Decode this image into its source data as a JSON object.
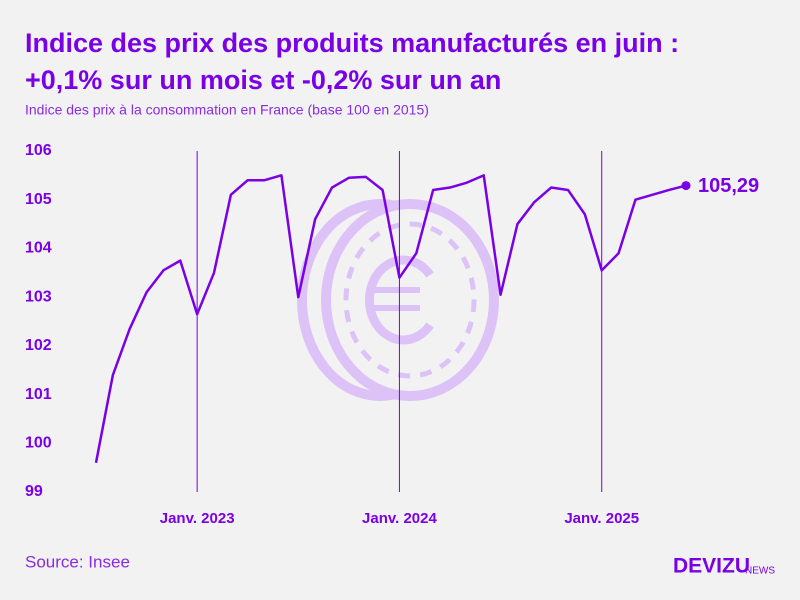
{
  "chart_data": {
    "type": "line",
    "title": [
      "Indice des prix des produits manufacturés en juin :",
      "+0,1% sur un mois et -0,2% sur un an"
    ],
    "subtitle": "Indice des prix à la consommation en France (base 100 en 2015)",
    "source": "Source: Insee",
    "brand": {
      "name": "DEVIZU",
      "suffix": "NEWS"
    },
    "categories": [
      null,
      null,
      null,
      null,
      null,
      null,
      "Janv. 2023",
      null,
      null,
      null,
      null,
      null,
      null,
      null,
      null,
      null,
      null,
      null,
      "Janv. 2024",
      null,
      null,
      null,
      null,
      null,
      null,
      null,
      null,
      null,
      null,
      null,
      "Janv. 2025",
      null,
      null,
      null,
      null,
      null
    ],
    "series": [
      {
        "name": "Indice des prix des produits manufacturés",
        "color": "#7a00e6",
        "values": [
          99.6,
          101.4,
          102.35,
          103.1,
          103.55,
          103.75,
          102.65,
          103.5,
          105.1,
          105.4,
          105.4,
          105.5,
          103.0,
          104.6,
          105.25,
          105.45,
          105.47,
          105.2,
          103.4,
          103.9,
          105.2,
          105.25,
          105.35,
          105.5,
          103.05,
          104.5,
          104.95,
          105.25,
          105.2,
          104.7,
          103.55,
          103.9,
          105.0,
          105.1,
          105.2,
          105.29
        ],
        "value_labels": [
          null,
          null,
          null,
          null,
          null,
          null,
          null,
          null,
          null,
          null,
          null,
          null,
          null,
          null,
          null,
          null,
          null,
          null,
          null,
          null,
          null,
          null,
          null,
          null,
          null,
          null,
          null,
          null,
          null,
          null,
          null,
          null,
          null,
          null,
          null,
          "105,29"
        ]
      }
    ],
    "ylim": [
      99,
      106
    ],
    "yticks": [
      99,
      100,
      101,
      102,
      103,
      104,
      105,
      106
    ]
  }
}
